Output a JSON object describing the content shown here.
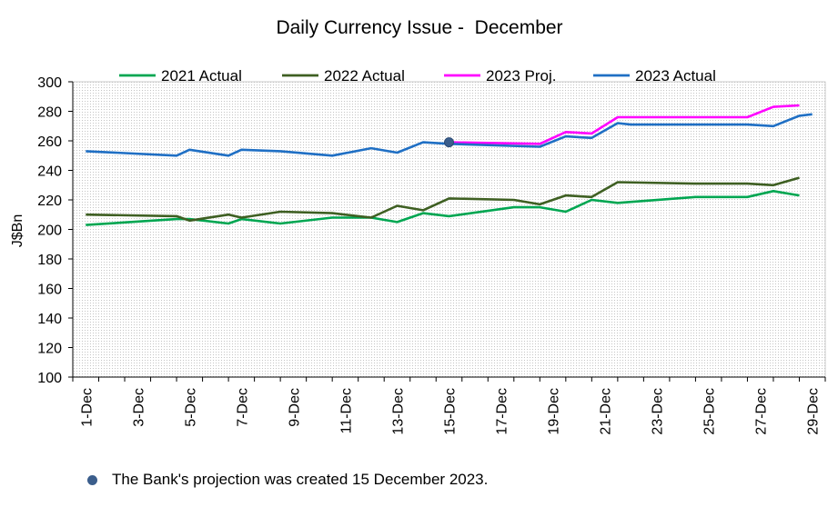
{
  "chart_data": {
    "type": "line",
    "title": "Daily Currency Issue -  December",
    "ylabel": "J$Bn",
    "ylim": [
      100,
      300
    ],
    "yticks": [
      100,
      120,
      140,
      160,
      180,
      200,
      220,
      240,
      260,
      280,
      300
    ],
    "x_count": 29,
    "x_tick_labels": [
      "1-Dec",
      "3-Dec",
      "5-Dec",
      "7-Dec",
      "9-Dec",
      "11-Dec",
      "13-Dec",
      "15-Dec",
      "17-Dec",
      "19-Dec",
      "21-Dec",
      "23-Dec",
      "25-Dec",
      "27-Dec",
      "29-Dec"
    ],
    "x_tick_days": [
      1,
      3,
      5,
      7,
      9,
      11,
      13,
      15,
      17,
      19,
      21,
      23,
      25,
      27,
      29
    ],
    "legend_position": "top",
    "plot_background": "dotted-grey",
    "series": [
      {
        "name": "2021 Actual",
        "color": "#00a651",
        "points": [
          [
            1,
            203
          ],
          [
            4.5,
            207
          ],
          [
            5,
            207
          ],
          [
            6.5,
            204
          ],
          [
            7,
            207
          ],
          [
            8.5,
            204
          ],
          [
            10.5,
            208
          ],
          [
            12,
            208
          ],
          [
            13,
            205
          ],
          [
            14,
            211
          ],
          [
            15,
            209
          ],
          [
            17.5,
            215
          ],
          [
            18.5,
            215
          ],
          [
            19.5,
            212
          ],
          [
            20.5,
            220
          ],
          [
            21.5,
            218
          ],
          [
            24.5,
            222
          ],
          [
            26.5,
            222
          ],
          [
            27.5,
            226
          ],
          [
            28.5,
            223
          ]
        ]
      },
      {
        "name": "2022 Actual",
        "color": "#3e5f22",
        "points": [
          [
            1,
            210
          ],
          [
            4.5,
            209
          ],
          [
            5,
            206
          ],
          [
            6.5,
            210
          ],
          [
            7,
            208
          ],
          [
            8.5,
            212
          ],
          [
            10.5,
            211
          ],
          [
            12,
            208
          ],
          [
            13,
            216
          ],
          [
            14,
            213
          ],
          [
            15,
            221
          ],
          [
            17.5,
            220
          ],
          [
            18.5,
            217
          ],
          [
            19.5,
            223
          ],
          [
            20.5,
            222
          ],
          [
            21.5,
            232
          ],
          [
            24.5,
            231
          ],
          [
            26.5,
            231
          ],
          [
            27.5,
            230
          ],
          [
            28.5,
            235
          ]
        ]
      },
      {
        "name": "2023 Proj.",
        "color": "#ff00ff",
        "points": [
          [
            15,
            259
          ],
          [
            18.5,
            258
          ],
          [
            19.5,
            266
          ],
          [
            20.5,
            265
          ],
          [
            21.5,
            276
          ],
          [
            22,
            276
          ],
          [
            26.5,
            276
          ],
          [
            27.5,
            283
          ],
          [
            28.5,
            284
          ]
        ]
      },
      {
        "name": "2023 Actual",
        "color": "#1f6fc4",
        "points": [
          [
            1,
            253
          ],
          [
            4.5,
            250
          ],
          [
            5,
            254
          ],
          [
            6.5,
            250
          ],
          [
            7,
            254
          ],
          [
            8.5,
            253
          ],
          [
            10.5,
            250
          ],
          [
            12,
            255
          ],
          [
            13,
            252
          ],
          [
            14,
            259
          ],
          [
            15,
            258
          ],
          [
            18.5,
            256
          ],
          [
            19.5,
            263
          ],
          [
            20.5,
            262
          ],
          [
            21.5,
            272
          ],
          [
            22,
            271
          ],
          [
            26.5,
            271
          ],
          [
            27.5,
            270
          ],
          [
            28.5,
            277
          ],
          [
            29,
            278
          ]
        ]
      }
    ],
    "marker": {
      "x": 15,
      "y": 259,
      "color": "#3b5e8c"
    }
  },
  "footnote": {
    "text": "The Bank's projection was created 15 December 2023."
  }
}
